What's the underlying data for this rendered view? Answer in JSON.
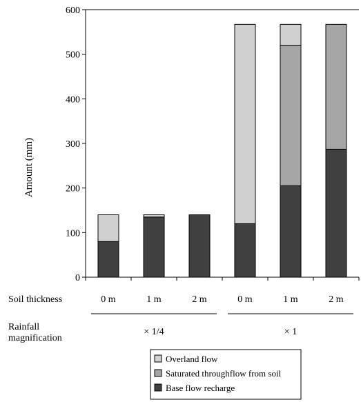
{
  "chart_data": {
    "type": "bar",
    "stacked": true,
    "ylabel": "Amount (mm)",
    "ylim": [
      0,
      600
    ],
    "yticks": [
      0,
      100,
      200,
      300,
      400,
      500,
      600
    ],
    "categories": [
      "0 m",
      "1 m",
      "2 m",
      "0 m",
      "1 m",
      "2 m"
    ],
    "row_labels": {
      "soil_thickness": "Soil thickness",
      "rainfall_line1": "Rainfall",
      "rainfall_line2": "magnification"
    },
    "groups": [
      {
        "label": "× 1/4",
        "categories": [
          0,
          1,
          2
        ]
      },
      {
        "label": "× 1",
        "categories": [
          3,
          4,
          5
        ]
      }
    ],
    "series": [
      {
        "name": "Base flow recharge",
        "color": "#404040",
        "values": [
          80,
          135,
          140,
          120,
          205,
          287
        ]
      },
      {
        "name": "Saturated throughflow from soil",
        "color": "#a6a6a6",
        "values": [
          0,
          0,
          0,
          0,
          315,
          280
        ]
      },
      {
        "name": "Overland flow",
        "color": "#d0d0d0",
        "values": [
          60,
          5,
          0,
          447,
          47,
          0
        ]
      }
    ],
    "legend": {
      "placement": "bottom",
      "order": [
        "Overland flow",
        "Saturated throughflow from soil",
        "Base flow recharge"
      ]
    },
    "grid": false
  }
}
